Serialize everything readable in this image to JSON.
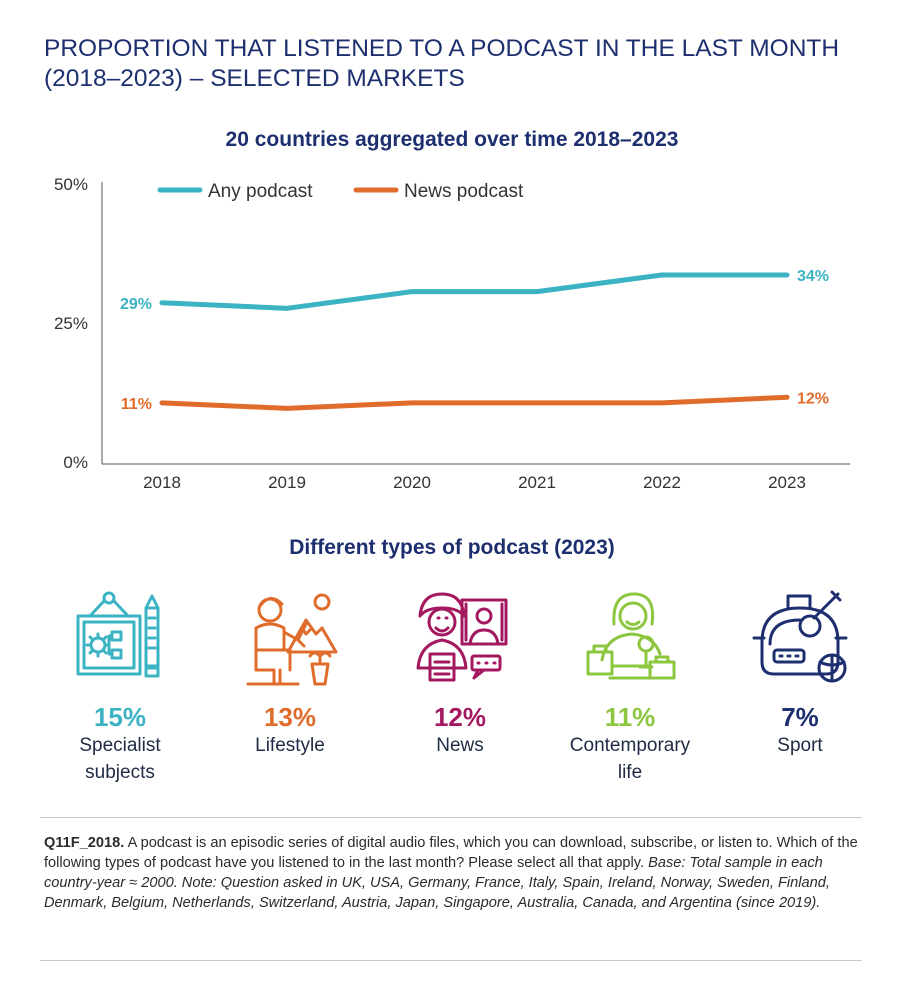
{
  "title": "PROPORTION THAT LISTENED TO A PODCAST IN THE LAST MONTH (2018–2023) – SELECTED MARKETS",
  "chart_data": {
    "type": "line",
    "title": "20 countries aggregated over time 2018–2023",
    "xlabel": "",
    "ylabel": "",
    "x": [
      "2018",
      "2019",
      "2020",
      "2021",
      "2022",
      "2023"
    ],
    "ylim": [
      0,
      50
    ],
    "yticks": [
      "0%",
      "25%",
      "50%"
    ],
    "ytick_values": [
      0,
      25,
      50
    ],
    "grid": false,
    "legend_position": "top",
    "series": [
      {
        "name": "Any podcast",
        "color": "#3bb3c3",
        "values": [
          29,
          28,
          31,
          31,
          34,
          34
        ],
        "labels": {
          "first": "29%",
          "last": "34%"
        }
      },
      {
        "name": "News podcast",
        "color": "#e06c2b",
        "values": [
          11,
          10,
          11,
          11,
          11,
          12
        ],
        "labels": {
          "first": "11%",
          "last": "12%"
        }
      }
    ]
  },
  "types_section": {
    "title": "Different types of podcast (2023)",
    "items": [
      {
        "pct": "15%",
        "label_lines": [
          "Specialist",
          "subjects"
        ],
        "color": "#3bb3c3",
        "icon": "blueprint-icon"
      },
      {
        "pct": "13%",
        "label_lines": [
          "Lifestyle"
        ],
        "color": "#e06c2b",
        "icon": "lifestyle-icon"
      },
      {
        "pct": "12%",
        "label_lines": [
          "News"
        ],
        "color": "#a3185f",
        "icon": "news-anchor-icon"
      },
      {
        "pct": "11%",
        "label_lines": [
          "Contemporary",
          "life"
        ],
        "color": "#8cc63f",
        "icon": "microphone-person-icon"
      },
      {
        "pct": "7%",
        "label_lines": [
          "Sport"
        ],
        "color": "#1d2f6f",
        "icon": "sports-bag-icon"
      }
    ]
  },
  "note": {
    "code": "Q11F_2018.",
    "question": " A podcast is an episodic series of digital audio files, which you can download, subscribe, or listen to. Which of the following types of podcast have you listened to in the last month? Please select all that apply. ",
    "base": "Base: Total sample in each country-year ≈ 2000. Note: Question asked in UK, USA, Germany, France, Italy, Spain, Ireland, Norway, Sweden, Finland, Denmark, Belgium, Netherlands, Switzerland, Austria, Japan, Singapore, Australia, Canada, and Argentina (since 2019)."
  }
}
